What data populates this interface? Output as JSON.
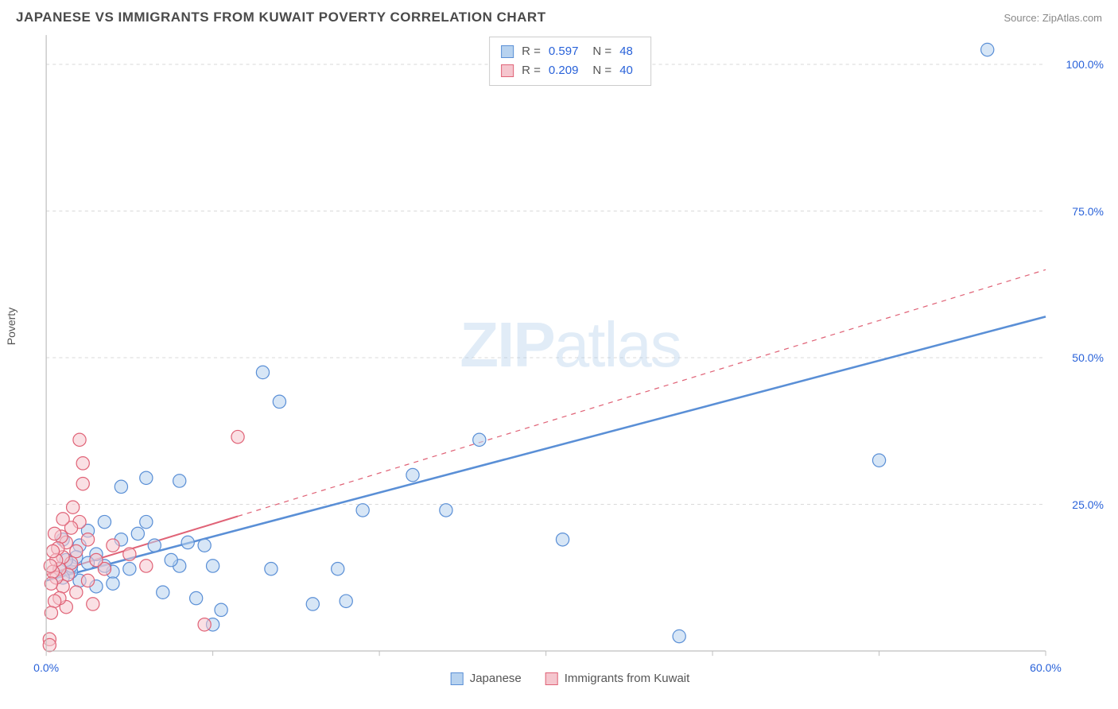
{
  "title": "JAPANESE VS IMMIGRANTS FROM KUWAIT POVERTY CORRELATION CHART",
  "source": "Source: ZipAtlas.com",
  "ylabel": "Poverty",
  "watermark": {
    "bold": "ZIP",
    "rest": "atlas"
  },
  "chart": {
    "type": "scatter",
    "xlim": [
      0,
      60
    ],
    "ylim": [
      0,
      105
    ],
    "xtick_step": 10,
    "ytick_labels": [
      25.0,
      50.0,
      75.0,
      100.0
    ],
    "xtick_labels": [
      0.0,
      60.0
    ],
    "grid_color": "#d9d9d9",
    "axis_color": "#bfbfbf",
    "background": "#ffffff",
    "marker_radius": 8,
    "marker_stroke_width": 1.2,
    "series": [
      {
        "name": "Japanese",
        "fill": "#b7d2ef",
        "stroke": "#5a8fd6",
        "fill_opacity": 0.55,
        "R": "0.597",
        "N": "48",
        "points": [
          [
            56.5,
            102.5
          ],
          [
            50.0,
            32.5
          ],
          [
            38.0,
            2.5
          ],
          [
            31.0,
            19.0
          ],
          [
            26.0,
            36.0
          ],
          [
            24.0,
            24.0
          ],
          [
            22.0,
            30.0
          ],
          [
            19.0,
            24.0
          ],
          [
            18.0,
            8.5
          ],
          [
            17.5,
            14.0
          ],
          [
            16.0,
            8.0
          ],
          [
            14.0,
            42.5
          ],
          [
            13.0,
            47.5
          ],
          [
            13.5,
            14.0
          ],
          [
            10.5,
            7.0
          ],
          [
            10.0,
            4.5
          ],
          [
            10.0,
            14.5
          ],
          [
            9.5,
            18.0
          ],
          [
            9.0,
            9.0
          ],
          [
            8.5,
            18.5
          ],
          [
            8.0,
            29.0
          ],
          [
            8.0,
            14.5
          ],
          [
            7.5,
            15.5
          ],
          [
            7.0,
            10.0
          ],
          [
            6.5,
            18.0
          ],
          [
            6.0,
            29.5
          ],
          [
            6.0,
            22.0
          ],
          [
            5.5,
            20.0
          ],
          [
            5.0,
            14.0
          ],
          [
            4.5,
            28.0
          ],
          [
            4.5,
            19.0
          ],
          [
            4.0,
            13.5
          ],
          [
            4.0,
            11.5
          ],
          [
            3.5,
            22.0
          ],
          [
            3.5,
            14.5
          ],
          [
            3.0,
            16.5
          ],
          [
            3.0,
            11.0
          ],
          [
            2.5,
            15.0
          ],
          [
            2.5,
            20.5
          ],
          [
            2.0,
            18.0
          ],
          [
            2.0,
            12.0
          ],
          [
            1.8,
            16.0
          ],
          [
            1.5,
            13.5
          ],
          [
            1.5,
            14.5
          ],
          [
            1.2,
            15.5
          ],
          [
            1.0,
            12.5
          ],
          [
            1.0,
            19.0
          ],
          [
            0.8,
            14.0
          ]
        ],
        "trend": {
          "x1": 0,
          "y1": 12.0,
          "x2": 60,
          "y2": 57.0,
          "solid_until_x": 60,
          "width": 2.5
        }
      },
      {
        "name": "Immigrants from Kuwait",
        "fill": "#f5c6ce",
        "stroke": "#e06377",
        "fill_opacity": 0.55,
        "R": "0.209",
        "N": "40",
        "points": [
          [
            11.5,
            36.5
          ],
          [
            9.5,
            4.5
          ],
          [
            6.0,
            14.5
          ],
          [
            5.0,
            16.5
          ],
          [
            4.0,
            18.0
          ],
          [
            3.5,
            14.0
          ],
          [
            3.0,
            15.5
          ],
          [
            2.8,
            8.0
          ],
          [
            2.5,
            19.0
          ],
          [
            2.5,
            12.0
          ],
          [
            2.2,
            32.0
          ],
          [
            2.2,
            28.5
          ],
          [
            2.0,
            36.0
          ],
          [
            2.0,
            22.0
          ],
          [
            1.8,
            17.0
          ],
          [
            1.8,
            10.0
          ],
          [
            1.6,
            24.5
          ],
          [
            1.5,
            15.0
          ],
          [
            1.5,
            21.0
          ],
          [
            1.3,
            13.0
          ],
          [
            1.2,
            18.5
          ],
          [
            1.2,
            7.5
          ],
          [
            1.0,
            22.5
          ],
          [
            1.0,
            16.0
          ],
          [
            1.0,
            11.0
          ],
          [
            0.9,
            19.5
          ],
          [
            0.8,
            14.0
          ],
          [
            0.8,
            9.0
          ],
          [
            0.7,
            17.5
          ],
          [
            0.6,
            12.5
          ],
          [
            0.6,
            15.5
          ],
          [
            0.5,
            20.0
          ],
          [
            0.5,
            8.5
          ],
          [
            0.4,
            13.5
          ],
          [
            0.4,
            17.0
          ],
          [
            0.3,
            11.5
          ],
          [
            0.3,
            6.5
          ],
          [
            0.25,
            14.5
          ],
          [
            0.2,
            2.0
          ],
          [
            0.2,
            1.0
          ]
        ],
        "trend": {
          "x1": 0,
          "y1": 13.0,
          "x2": 60,
          "y2": 65.0,
          "solid_until_x": 11.5,
          "width": 2
        }
      }
    ],
    "legend_bottom": [
      {
        "label": "Japanese",
        "fill": "#b7d2ef",
        "stroke": "#5a8fd6"
      },
      {
        "label": "Immigrants from Kuwait",
        "fill": "#f5c6ce",
        "stroke": "#e06377"
      }
    ]
  }
}
